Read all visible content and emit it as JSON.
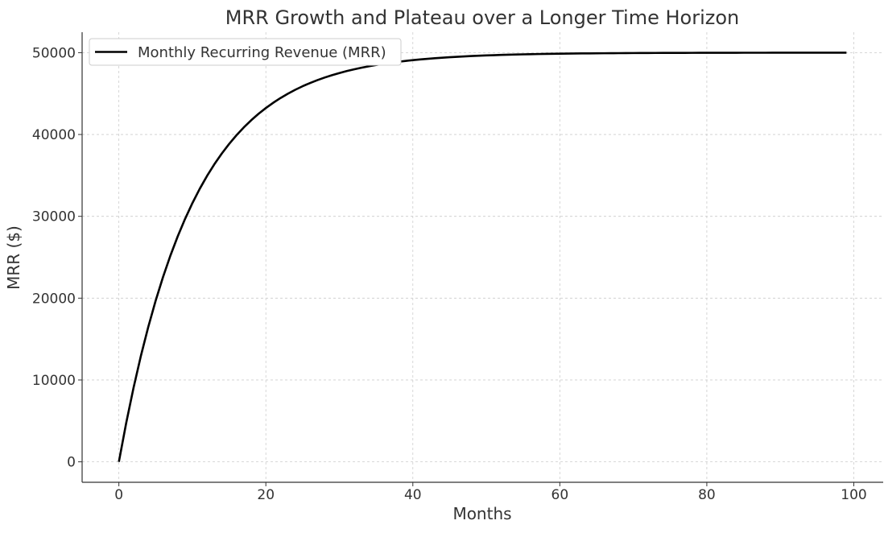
{
  "chart_data": {
    "type": "line",
    "title": "MRR Growth and Plateau over a Longer Time Horizon",
    "xlabel": "Months",
    "ylabel": "MRR ($)",
    "xlim": [
      -5,
      104
    ],
    "ylim": [
      -2500,
      52500
    ],
    "xticks": [
      0,
      20,
      40,
      60,
      80,
      100
    ],
    "yticks": [
      0,
      10000,
      20000,
      30000,
      40000,
      50000
    ],
    "grid": true,
    "legend": {
      "position": "top-left"
    },
    "series": [
      {
        "name": "Monthly Recurring Revenue (MRR)",
        "color": "#000000",
        "x": [
          0,
          1,
          2,
          3,
          4,
          5,
          6,
          7,
          8,
          9,
          10,
          11,
          12,
          13,
          14,
          15,
          16,
          17,
          18,
          19,
          20,
          21,
          22,
          23,
          24,
          25,
          26,
          27,
          28,
          29,
          30,
          31,
          32,
          33,
          34,
          35,
          36,
          37,
          38,
          39,
          40,
          41,
          42,
          43,
          44,
          45,
          46,
          47,
          48,
          49,
          50,
          51,
          52,
          53,
          54,
          55,
          56,
          57,
          58,
          59,
          60,
          61,
          62,
          63,
          64,
          65,
          66,
          67,
          68,
          69,
          70,
          71,
          72,
          73,
          74,
          75,
          76,
          77,
          78,
          79,
          80,
          81,
          82,
          83,
          84,
          85,
          86,
          87,
          88,
          89,
          90,
          91,
          92,
          93,
          94,
          95,
          96,
          97,
          98,
          99
        ],
        "y": [
          0,
          4758,
          9063,
          12959,
          16484,
          19673,
          22559,
          25171,
          27534,
          29672,
          31606,
          33357,
          34940,
          36373,
          37670,
          38843,
          39905,
          40866,
          41735,
          42522,
          43233,
          43877,
          44460,
          44987,
          45464,
          45896,
          46287,
          46640,
          46960,
          47250,
          47511,
          47749,
          47963,
          48157,
          48333,
          48492,
          48636,
          48766,
          48883,
          48990,
          49084,
          49171,
          49250,
          49321,
          49384,
          49443,
          49496,
          49544,
          49587,
          49626,
          49663,
          49693,
          49722,
          49748,
          49772,
          49794,
          49813,
          49831,
          49847,
          49862,
          49873,
          49885,
          49896,
          49906,
          49915,
          49923,
          49930,
          49937,
          49943,
          49948,
          49954,
          49958,
          49962,
          49966,
          49969,
          49972,
          49975,
          49977,
          49979,
          49981,
          49983,
          49985,
          49986,
          49987,
          49989,
          49990,
          49991,
          49992,
          49992,
          49993,
          49994,
          49994,
          49995,
          49995,
          49996,
          49996,
          49997,
          49997,
          49997,
          49997
        ]
      }
    ]
  }
}
